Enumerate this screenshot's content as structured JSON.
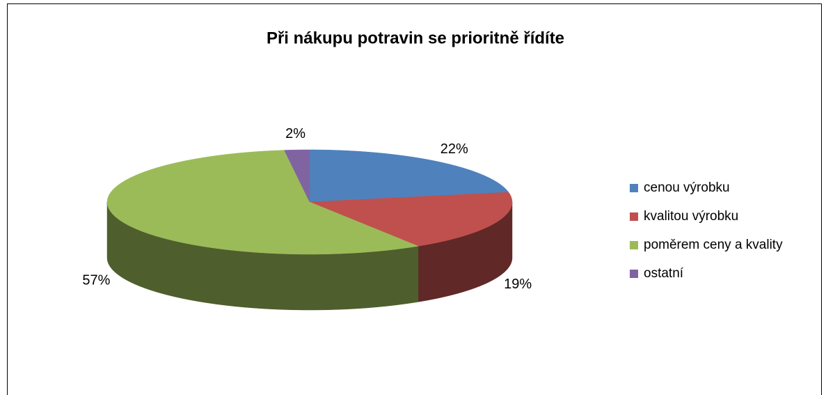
{
  "chart_data": {
    "type": "pie3d",
    "title": "Při nákupu potravin se prioritně řídíte",
    "categories": [
      "cenou výrobku",
      "kvalitou výrobku",
      "poměrem ceny a kvality",
      "ostatní"
    ],
    "values": [
      22,
      19,
      57,
      2
    ],
    "value_labels": [
      "22%",
      "19%",
      "57%",
      "2%"
    ],
    "colors": [
      "#4f81bd",
      "#c0504d",
      "#9bbb59",
      "#8064a2"
    ],
    "legend": "right"
  }
}
